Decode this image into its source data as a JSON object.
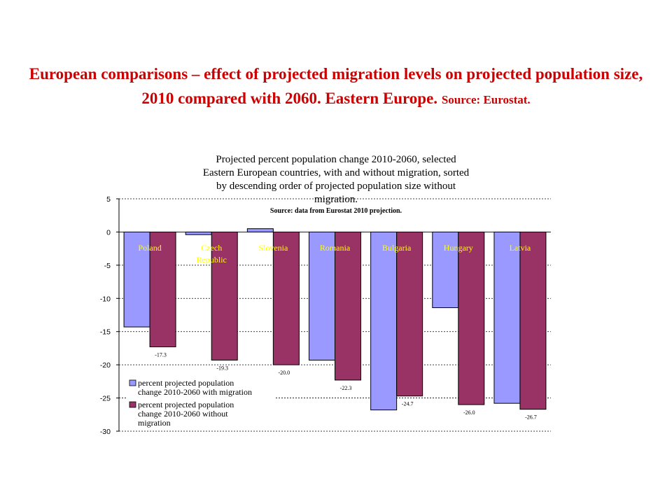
{
  "slide": {
    "title": "European comparisons – effect of projected migration levels on projected population size, 2010 compared with 2060. Eastern Europe.",
    "source": "Source: Eurostat."
  },
  "chart_data": {
    "type": "bar",
    "title": "Projected percent population change 2010-2060, selected Eastern European countries, with and without migration, sorted by descending order of projected population size without migration.",
    "subtitle": "Source: data from Eurostat 2010 projection.",
    "categories": [
      "Poland",
      "Czech Republic",
      "Slovenia",
      "Romania",
      "Bulgaria",
      "Hungary",
      "Latvia"
    ],
    "series": [
      {
        "name": "percent projected population change 2010-2060 with migration",
        "color": "#9999ff",
        "values": [
          -14.3,
          -0.4,
          0.5,
          -19.3,
          -26.8,
          -11.4,
          -25.8
        ],
        "labels": [
          "",
          "",
          "",
          "",
          "",
          "",
          ""
        ]
      },
      {
        "name": "percent projected population change 2010-2060 without migration",
        "color": "#993366",
        "values": [
          -17.3,
          -19.3,
          -20.0,
          -22.3,
          -24.7,
          -26.0,
          -26.7
        ],
        "labels": [
          "-17.3",
          "-19.3",
          "-20.0",
          "-22.3",
          "-24.7",
          "-26.0",
          "-26.7"
        ]
      }
    ],
    "ylim": [
      -30,
      5
    ],
    "yticks": [
      5,
      0,
      -5,
      -10,
      -15,
      -20,
      -25,
      -30
    ],
    "xlabel": "",
    "ylabel": "",
    "grid": true,
    "legend_position": "bottom-left"
  }
}
